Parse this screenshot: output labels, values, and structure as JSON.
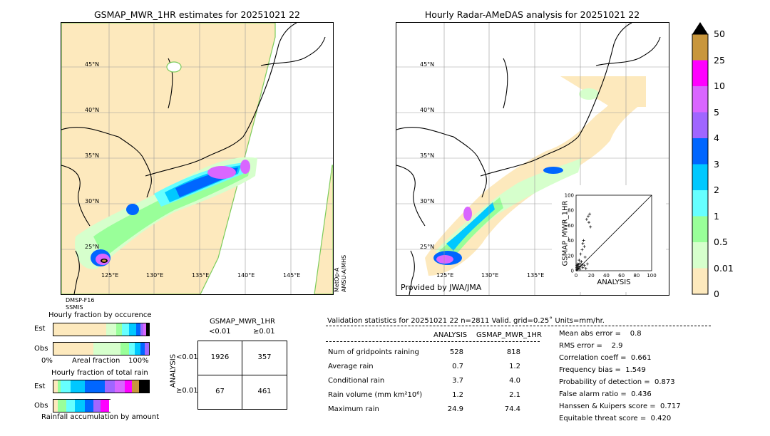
{
  "left_map": {
    "title": "GSMAP_MWR_1HR estimates for 20251021 22",
    "lat_labels": [
      "45°N",
      "40°N",
      "35°N",
      "30°N",
      "25°N"
    ],
    "lon_labels": [
      "125°E",
      "130°E",
      "135°E",
      "140°E",
      "145°E"
    ],
    "sensor_left": [
      "DMSP-F16",
      "SSMIS"
    ],
    "sensor_right": [
      "MetOp-A",
      "AMSU-A/MHS"
    ]
  },
  "right_map": {
    "title": "Hourly Radar-AMeDAS analysis for 20251021 22",
    "lat_labels": [
      "45°N",
      "40°N",
      "35°N",
      "30°N",
      "25°N"
    ],
    "lon_labels": [
      "125°E",
      "130°E",
      "135°E"
    ],
    "provider": "Provided by JWA/JMA"
  },
  "colorbar": {
    "labels": [
      "50",
      "25",
      "10",
      "5",
      "4",
      "3",
      "2",
      "1",
      "0.5",
      "0.01",
      "0"
    ],
    "colors": [
      "#c8963c",
      "#ff00ff",
      "#d966ff",
      "#a066ff",
      "#0066ff",
      "#00c8ff",
      "#66ffff",
      "#99ff99",
      "#d6ffcc",
      "#fde9bd"
    ]
  },
  "scatter": {
    "ylabel": "GSMAP_MWR_1HR",
    "xlabel": "ANALYSIS",
    "ticks": [
      "0",
      "20",
      "40",
      "60",
      "80",
      "100"
    ]
  },
  "fraction_occurrence": {
    "title": "Hourly fraction by occurence",
    "rows": [
      "Est",
      "Obs"
    ],
    "axis_left": "0%",
    "axis_mid": "Areal fraction",
    "axis_right": "100%"
  },
  "fraction_total": {
    "title": "Hourly fraction of total rain",
    "rows": [
      "Est",
      "Obs"
    ],
    "footer": "Rainfall accumulation by amount"
  },
  "contingency": {
    "title": "GSMAP_MWR_1HR",
    "col_headers": [
      "<0.01",
      "≥0.01"
    ],
    "row_axis": "ANALYSIS",
    "row_headers": [
      "<0.01",
      "≥0.01"
    ],
    "cells": [
      [
        "1926",
        "357"
      ],
      [
        "67",
        "461"
      ]
    ]
  },
  "validation": {
    "header": "Validation statistics for 20251021 22  n=2811 Valid. grid=0.25˚ Units=mm/hr.",
    "col_analysis": "ANALYSIS",
    "col_gsmap": "GSMAP_MWR_1HR",
    "rows": [
      {
        "label": "Num of gridpoints raining",
        "a": "528",
        "g": "818"
      },
      {
        "label": "Average rain",
        "a": "0.7",
        "g": "1.2"
      },
      {
        "label": "Conditional rain",
        "a": "3.7",
        "g": "4.0"
      },
      {
        "label": "Rain volume (mm km²10⁶)",
        "a": "1.2",
        "g": "2.1"
      },
      {
        "label": "Maximum rain",
        "a": "24.9",
        "g": "74.4"
      }
    ],
    "scores": [
      "Mean abs error =    0.8",
      "RMS error =    2.9",
      "Correlation coeff =  0.661",
      "Frequency bias =  1.549",
      "Probability of detection =  0.873",
      "False alarm ratio =  0.436",
      "Hanssen & Kuipers score =  0.717",
      "Equitable threat score =  0.420"
    ]
  },
  "chart_data": {
    "type": "scatter",
    "xlabel": "ANALYSIS",
    "ylabel": "GSMAP_MWR_1HR",
    "xlim": [
      0,
      100
    ],
    "ylim": [
      0,
      100
    ],
    "points": [
      [
        14,
        68
      ],
      [
        16,
        72
      ],
      [
        18,
        75
      ],
      [
        17,
        64
      ],
      [
        19,
        58
      ],
      [
        10,
        40
      ],
      [
        9,
        36
      ],
      [
        11,
        32
      ],
      [
        8,
        28
      ],
      [
        6,
        22
      ],
      [
        12,
        18
      ],
      [
        4,
        14
      ],
      [
        5,
        10
      ],
      [
        3,
        8
      ],
      [
        2,
        6
      ],
      [
        1,
        4
      ],
      [
        7,
        12
      ],
      [
        8,
        8
      ],
      [
        3,
        3
      ],
      [
        2,
        2
      ],
      [
        1,
        1
      ],
      [
        4,
        5
      ],
      [
        6,
        6
      ],
      [
        9,
        4
      ],
      [
        11,
        7
      ],
      [
        13,
        3
      ],
      [
        15,
        9
      ],
      [
        5,
        2
      ],
      [
        2,
        9
      ],
      [
        1,
        7
      ]
    ]
  }
}
